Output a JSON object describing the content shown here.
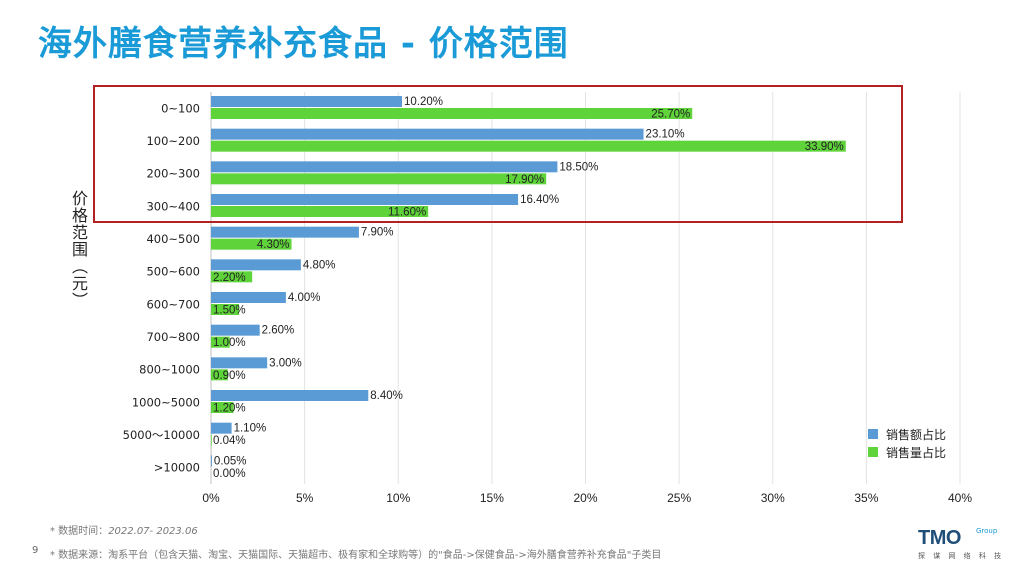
{
  "title": "海外膳食营养补充食品 - 价格范围",
  "y_axis_label": "价格范围（元）",
  "chart_data": {
    "type": "bar",
    "orientation": "horizontal",
    "categories": [
      "0~100",
      "100~200",
      "200~300",
      "300~400",
      "400~500",
      "500~600",
      "600~700",
      "700~800",
      "800~1000",
      "1000~5000",
      "5000～10000",
      ">10000"
    ],
    "series": [
      {
        "name": "销售额占比",
        "color": "#5b9bd5",
        "values": [
          10.2,
          23.1,
          18.5,
          16.4,
          7.9,
          4.8,
          4.0,
          2.6,
          3.0,
          8.4,
          1.1,
          0.05
        ],
        "labels": [
          "10.20%",
          "23.10%",
          "18.50%",
          "16.40%",
          "7.90%",
          "4.80%",
          "4.00%",
          "2.60%",
          "3.00%",
          "8.40%",
          "1.10%",
          "0.05%"
        ]
      },
      {
        "name": "销售量占比",
        "color": "#5fd33a",
        "values": [
          25.7,
          33.9,
          17.9,
          11.6,
          4.3,
          2.2,
          1.5,
          1.0,
          0.9,
          1.2,
          0.04,
          0.0
        ],
        "labels": [
          "25.70%",
          "33.90%",
          "17.90%",
          "11.60%",
          "4.30%",
          "2.20%",
          "1.50%",
          "1.00%",
          "0.90%",
          "1.20%",
          "0.04%",
          "0.00%"
        ]
      }
    ],
    "xlim": [
      0,
      40
    ],
    "xticks": [
      "0%",
      "5%",
      "10%",
      "15%",
      "20%",
      "25%",
      "30%",
      "35%",
      "40%"
    ],
    "grid": true,
    "legend_position": "bottom-right"
  },
  "legend": [
    {
      "label": "销售额占比",
      "color": "#5b9bd5"
    },
    {
      "label": "销售量占比",
      "color": "#5fd33a"
    }
  ],
  "notes": {
    "date_prefix": "* 数据时间：",
    "date_value": "2022.07- 2023.06",
    "source": "* 数据来源：淘系平台（包含天猫、淘宝、天猫国际、天猫超市、极有家和全球购等）的\"食品->保健食品->海外膳食营养补充食品\"子类目"
  },
  "page_number": "9",
  "logo": {
    "main": "TMO",
    "group": "Group",
    "sub": "探 谋 网 络 科 技"
  }
}
